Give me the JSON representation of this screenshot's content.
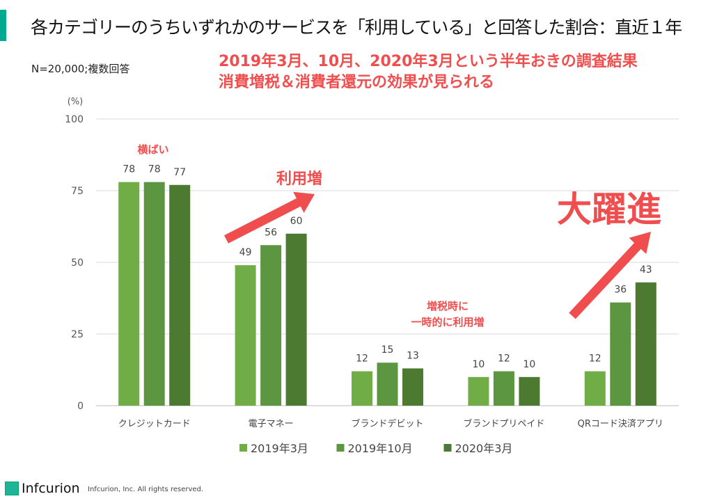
{
  "title": "各カテゴリーのうちいずれかのサービスを「利用している」と回答した割合：直近１年",
  "note": "N=20,000;複数回答",
  "headline": [
    "2019年3月、10月、2020年3月という半年おきの調査結果",
    "消費増税＆消費者還元の効果が見られる"
  ],
  "footer": {
    "logo": "Infcurion",
    "copyright": "Infcurion, Inc.  All rights reserved."
  },
  "colors": {
    "accent": "#00a98f",
    "highlight": "#f04e4e"
  },
  "chart_data": {
    "type": "bar",
    "ylabel": "(%)",
    "ylim": [
      0,
      100
    ],
    "yticks": [
      0,
      25,
      50,
      75,
      100
    ],
    "grid": true,
    "legend_position": "bottom",
    "categories": [
      "クレジットカード",
      "電子マネー",
      "ブランドデビット",
      "ブランドプリペイド",
      "QRコード決済アプリ"
    ],
    "series": [
      {
        "name": "2019年3月",
        "color": "#70ad47",
        "values": [
          78,
          49,
          12,
          10,
          12
        ]
      },
      {
        "name": "2019年10月",
        "color": "#5d9640",
        "values": [
          78,
          56,
          15,
          12,
          36
        ]
      },
      {
        "name": "2020年3月",
        "color": "#4b7a30",
        "values": [
          77,
          60,
          13,
          10,
          43
        ]
      }
    ],
    "annotations": [
      "横ばい",
      "利用増",
      "増税時に",
      "一時的に利用増",
      "大躍進"
    ]
  }
}
